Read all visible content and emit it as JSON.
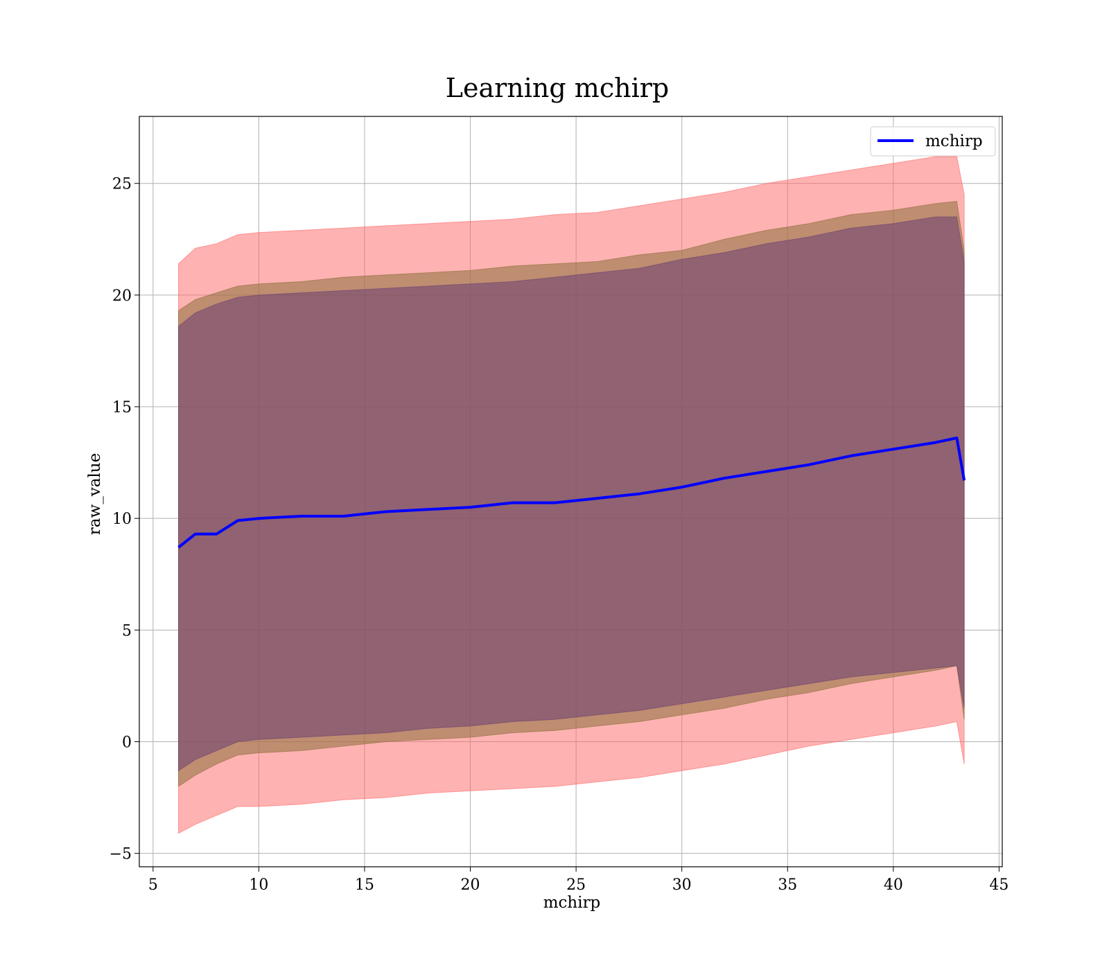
{
  "chart_data": {
    "type": "area",
    "title": "Learning mchirp",
    "xlabel": "mchirp",
    "ylabel": "raw_value",
    "xlim": [
      4.35,
      45.15
    ],
    "ylim": [
      -5.6,
      28.0
    ],
    "xticks": [
      5,
      10,
      15,
      20,
      25,
      30,
      35,
      40,
      45
    ],
    "xtick_labels": [
      "5",
      "10",
      "15",
      "20",
      "25",
      "30",
      "35",
      "40",
      "45"
    ],
    "yticks": [
      -5,
      0,
      5,
      10,
      15,
      20,
      25
    ],
    "ytick_labels": [
      "−5",
      "0",
      "5",
      "10",
      "15",
      "20",
      "25"
    ],
    "grid": true,
    "legend": {
      "position": "top-right",
      "entries": [
        {
          "label": "mchirp",
          "color": "#0000ff"
        }
      ]
    },
    "x": [
      6.2,
      7.0,
      8.0,
      9.0,
      10.0,
      12.0,
      14.0,
      16.0,
      18.0,
      20.0,
      22.0,
      24.0,
      26.0,
      28.0,
      30.0,
      32.0,
      34.0,
      36.0,
      38.0,
      40.0,
      42.0,
      43.0,
      43.35
    ],
    "series": [
      {
        "name": "mchirp",
        "kind": "line",
        "color": "#0000ff",
        "values": [
          8.7,
          9.3,
          9.3,
          9.9,
          10.0,
          10.1,
          10.1,
          10.3,
          10.4,
          10.5,
          10.7,
          10.7,
          10.9,
          11.1,
          11.4,
          11.8,
          12.1,
          12.4,
          12.8,
          13.1,
          13.4,
          13.6,
          11.7
        ]
      },
      {
        "kind": "band",
        "color": "#ff6666",
        "opacity": 0.5,
        "upper": [
          21.4,
          22.1,
          22.3,
          22.7,
          22.8,
          22.9,
          23.0,
          23.1,
          23.2,
          23.3,
          23.4,
          23.6,
          23.7,
          24.0,
          24.3,
          24.6,
          25.0,
          25.3,
          25.6,
          25.9,
          26.2,
          26.2,
          24.5
        ],
        "lower": [
          -4.1,
          -3.7,
          -3.3,
          -2.9,
          -2.9,
          -2.8,
          -2.6,
          -2.5,
          -2.3,
          -2.2,
          -2.1,
          -2.0,
          -1.8,
          -1.6,
          -1.3,
          -1.0,
          -0.6,
          -0.2,
          0.1,
          0.4,
          0.7,
          0.9,
          -1.0
        ]
      },
      {
        "kind": "band",
        "color": "#8b6f3a",
        "opacity": 0.55,
        "upper": [
          19.3,
          19.8,
          20.1,
          20.4,
          20.5,
          20.6,
          20.8,
          20.9,
          21.0,
          21.1,
          21.3,
          21.4,
          21.5,
          21.8,
          22.0,
          22.5,
          22.9,
          23.2,
          23.6,
          23.8,
          24.1,
          24.2,
          22.0
        ],
        "lower": [
          -2.0,
          -1.5,
          -1.0,
          -0.6,
          -0.5,
          -0.4,
          -0.2,
          0.0,
          0.1,
          0.2,
          0.4,
          0.5,
          0.7,
          0.9,
          1.2,
          1.5,
          1.9,
          2.2,
          2.6,
          2.9,
          3.2,
          3.4,
          1.0
        ]
      },
      {
        "kind": "band",
        "color": "#6b3f72",
        "opacity": 0.55,
        "upper": [
          18.6,
          19.2,
          19.6,
          19.9,
          20.0,
          20.1,
          20.2,
          20.3,
          20.4,
          20.5,
          20.6,
          20.8,
          21.0,
          21.2,
          21.6,
          21.9,
          22.3,
          22.6,
          23.0,
          23.2,
          23.5,
          23.5,
          21.5
        ],
        "lower": [
          -1.3,
          -0.8,
          -0.4,
          0.0,
          0.1,
          0.2,
          0.3,
          0.4,
          0.6,
          0.7,
          0.9,
          1.0,
          1.2,
          1.4,
          1.7,
          2.0,
          2.3,
          2.6,
          2.9,
          3.1,
          3.3,
          3.4,
          1.5
        ]
      }
    ]
  }
}
